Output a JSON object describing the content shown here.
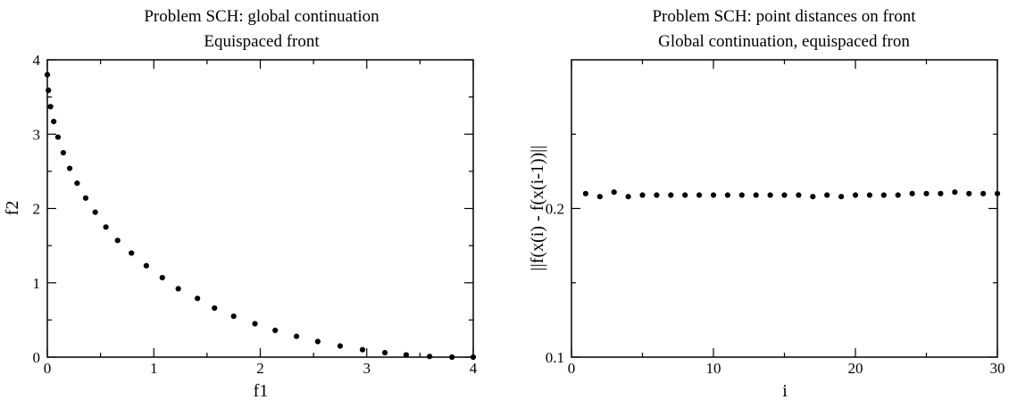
{
  "chart_data": [
    {
      "type": "scatter",
      "title": "Problem SCH: global continuation",
      "subtitle": "Equispaced front",
      "xlabel": "f1",
      "ylabel": "f2",
      "xlim": [
        0,
        4
      ],
      "ylim": [
        0,
        4
      ],
      "x_ticks": [
        0,
        1,
        2,
        3,
        4
      ],
      "y_ticks": [
        0,
        1,
        2,
        3,
        4
      ],
      "x_minor_ticks": [
        0.5,
        1.5,
        2.5,
        3.5
      ],
      "y_minor_ticks": [
        0.5,
        1.5,
        2.5,
        3.5
      ],
      "grid": false,
      "legend": "none",
      "colors": {
        "points": "#000000",
        "axes": "#000000",
        "background": "#ffffff"
      },
      "points": [
        {
          "x": 0.0,
          "y": 3.8
        },
        {
          "x": 0.01,
          "y": 3.59
        },
        {
          "x": 0.03,
          "y": 3.37
        },
        {
          "x": 0.06,
          "y": 3.17
        },
        {
          "x": 0.1,
          "y": 2.96
        },
        {
          "x": 0.15,
          "y": 2.75
        },
        {
          "x": 0.21,
          "y": 2.54
        },
        {
          "x": 0.28,
          "y": 2.34
        },
        {
          "x": 0.36,
          "y": 2.14
        },
        {
          "x": 0.45,
          "y": 1.95
        },
        {
          "x": 0.55,
          "y": 1.75
        },
        {
          "x": 0.66,
          "y": 1.57
        },
        {
          "x": 0.79,
          "y": 1.4
        },
        {
          "x": 0.93,
          "y": 1.23
        },
        {
          "x": 1.08,
          "y": 1.07
        },
        {
          "x": 1.23,
          "y": 0.92
        },
        {
          "x": 1.41,
          "y": 0.79
        },
        {
          "x": 1.57,
          "y": 0.66
        },
        {
          "x": 1.75,
          "y": 0.55
        },
        {
          "x": 1.95,
          "y": 0.45
        },
        {
          "x": 2.14,
          "y": 0.36
        },
        {
          "x": 2.34,
          "y": 0.28
        },
        {
          "x": 2.54,
          "y": 0.21
        },
        {
          "x": 2.75,
          "y": 0.15
        },
        {
          "x": 2.96,
          "y": 0.1
        },
        {
          "x": 3.17,
          "y": 0.06
        },
        {
          "x": 3.37,
          "y": 0.03
        },
        {
          "x": 3.59,
          "y": 0.01
        },
        {
          "x": 3.8,
          "y": 0.0
        },
        {
          "x": 4.0,
          "y": 0.0
        }
      ]
    },
    {
      "type": "scatter",
      "title": "Problem SCH: point distances on front",
      "subtitle": "Global continuation, equispaced fron",
      "xlabel": "i",
      "ylabel": "||f(x(i) - f(x(i-1))||",
      "xlim": [
        0,
        30
      ],
      "ylim": [
        0.1,
        0.3
      ],
      "x_ticks": [
        0,
        10,
        20,
        30
      ],
      "y_ticks": [
        0.1,
        0.2
      ],
      "x_minor_ticks": [
        5,
        15,
        25
      ],
      "y_minor_ticks": [
        0.15,
        0.25
      ],
      "grid": false,
      "legend": "none",
      "colors": {
        "points": "#000000",
        "axes": "#000000",
        "background": "#ffffff"
      },
      "points": [
        {
          "x": 1,
          "y": 0.21
        },
        {
          "x": 2,
          "y": 0.208
        },
        {
          "x": 3,
          "y": 0.211
        },
        {
          "x": 4,
          "y": 0.208
        },
        {
          "x": 5,
          "y": 0.209
        },
        {
          "x": 6,
          "y": 0.209
        },
        {
          "x": 7,
          "y": 0.209
        },
        {
          "x": 8,
          "y": 0.209
        },
        {
          "x": 9,
          "y": 0.209
        },
        {
          "x": 10,
          "y": 0.209
        },
        {
          "x": 11,
          "y": 0.209
        },
        {
          "x": 12,
          "y": 0.209
        },
        {
          "x": 13,
          "y": 0.209
        },
        {
          "x": 14,
          "y": 0.209
        },
        {
          "x": 15,
          "y": 0.209
        },
        {
          "x": 16,
          "y": 0.209
        },
        {
          "x": 17,
          "y": 0.208
        },
        {
          "x": 18,
          "y": 0.209
        },
        {
          "x": 19,
          "y": 0.208
        },
        {
          "x": 20,
          "y": 0.209
        },
        {
          "x": 21,
          "y": 0.209
        },
        {
          "x": 22,
          "y": 0.209
        },
        {
          "x": 23,
          "y": 0.209
        },
        {
          "x": 24,
          "y": 0.21
        },
        {
          "x": 25,
          "y": 0.21
        },
        {
          "x": 26,
          "y": 0.21
        },
        {
          "x": 27,
          "y": 0.211
        },
        {
          "x": 28,
          "y": 0.21
        },
        {
          "x": 29,
          "y": 0.21
        },
        {
          "x": 30,
          "y": 0.21
        }
      ]
    }
  ]
}
